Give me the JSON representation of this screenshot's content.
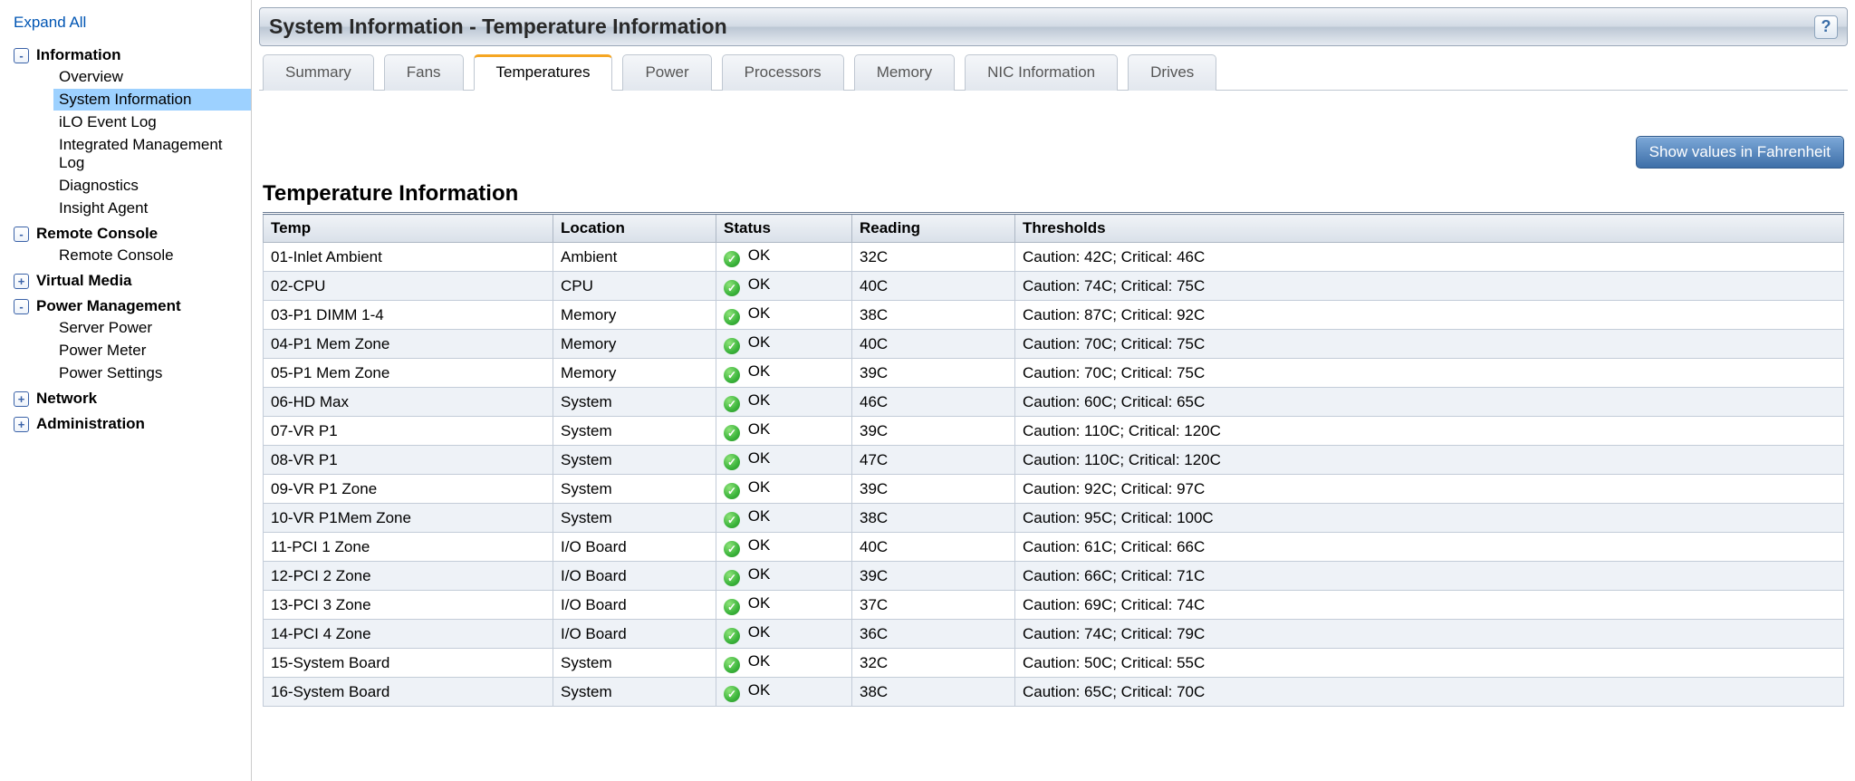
{
  "sidebar": {
    "expand_all": "Expand All",
    "groups": [
      {
        "label": "Information",
        "state": "-",
        "children": [
          {
            "label": "Overview",
            "active": false
          },
          {
            "label": "System Information",
            "active": true
          },
          {
            "label": "iLO Event Log",
            "active": false
          },
          {
            "label": "Integrated Management Log",
            "active": false
          },
          {
            "label": "Diagnostics",
            "active": false
          },
          {
            "label": "Insight Agent",
            "active": false
          }
        ]
      },
      {
        "label": "Remote Console",
        "state": "-",
        "children": [
          {
            "label": "Remote Console",
            "active": false
          }
        ]
      },
      {
        "label": "Virtual Media",
        "state": "+",
        "children": []
      },
      {
        "label": "Power Management",
        "state": "-",
        "children": [
          {
            "label": "Server Power",
            "active": false
          },
          {
            "label": "Power Meter",
            "active": false
          },
          {
            "label": "Power Settings",
            "active": false
          }
        ]
      },
      {
        "label": "Network",
        "state": "+",
        "children": []
      },
      {
        "label": "Administration",
        "state": "+",
        "children": []
      }
    ]
  },
  "header": {
    "title": "System Information - Temperature Information"
  },
  "tabs": [
    {
      "label": "Summary",
      "active": false
    },
    {
      "label": "Fans",
      "active": false
    },
    {
      "label": "Temperatures",
      "active": true
    },
    {
      "label": "Power",
      "active": false
    },
    {
      "label": "Processors",
      "active": false
    },
    {
      "label": "Memory",
      "active": false
    },
    {
      "label": "NIC Information",
      "active": false
    },
    {
      "label": "Drives",
      "active": false
    }
  ],
  "actions": {
    "unit_button": "Show values in Fahrenheit"
  },
  "section": {
    "title": "Temperature Information",
    "columns": [
      "Temp",
      "Location",
      "Status",
      "Reading",
      "Thresholds"
    ],
    "status_ok_label": "OK",
    "rows": [
      {
        "temp": "01-Inlet Ambient",
        "location": "Ambient",
        "status": "OK",
        "reading": "32C",
        "thresholds": "Caution: 42C; Critical: 46C"
      },
      {
        "temp": "02-CPU",
        "location": "CPU",
        "status": "OK",
        "reading": "40C",
        "thresholds": "Caution: 74C; Critical: 75C"
      },
      {
        "temp": "03-P1 DIMM 1-4",
        "location": "Memory",
        "status": "OK",
        "reading": "38C",
        "thresholds": "Caution: 87C; Critical: 92C"
      },
      {
        "temp": "04-P1 Mem Zone",
        "location": "Memory",
        "status": "OK",
        "reading": "40C",
        "thresholds": "Caution: 70C; Critical: 75C"
      },
      {
        "temp": "05-P1 Mem Zone",
        "location": "Memory",
        "status": "OK",
        "reading": "39C",
        "thresholds": "Caution: 70C; Critical: 75C"
      },
      {
        "temp": "06-HD Max",
        "location": "System",
        "status": "OK",
        "reading": "46C",
        "thresholds": "Caution: 60C; Critical: 65C"
      },
      {
        "temp": "07-VR P1",
        "location": "System",
        "status": "OK",
        "reading": "39C",
        "thresholds": "Caution: 110C; Critical: 120C"
      },
      {
        "temp": "08-VR P1",
        "location": "System",
        "status": "OK",
        "reading": "47C",
        "thresholds": "Caution: 110C; Critical: 120C"
      },
      {
        "temp": "09-VR P1 Zone",
        "location": "System",
        "status": "OK",
        "reading": "39C",
        "thresholds": "Caution: 92C; Critical: 97C"
      },
      {
        "temp": "10-VR P1Mem Zone",
        "location": "System",
        "status": "OK",
        "reading": "38C",
        "thresholds": "Caution: 95C; Critical: 100C"
      },
      {
        "temp": "11-PCI 1 Zone",
        "location": "I/O Board",
        "status": "OK",
        "reading": "40C",
        "thresholds": "Caution: 61C; Critical: 66C"
      },
      {
        "temp": "12-PCI 2 Zone",
        "location": "I/O Board",
        "status": "OK",
        "reading": "39C",
        "thresholds": "Caution: 66C; Critical: 71C"
      },
      {
        "temp": "13-PCI 3 Zone",
        "location": "I/O Board",
        "status": "OK",
        "reading": "37C",
        "thresholds": "Caution: 69C; Critical: 74C"
      },
      {
        "temp": "14-PCI 4 Zone",
        "location": "I/O Board",
        "status": "OK",
        "reading": "36C",
        "thresholds": "Caution: 74C; Critical: 79C"
      },
      {
        "temp": "15-System Board",
        "location": "System",
        "status": "OK",
        "reading": "32C",
        "thresholds": "Caution: 50C; Critical: 55C"
      },
      {
        "temp": "16-System Board",
        "location": "System",
        "status": "OK",
        "reading": "38C",
        "thresholds": "Caution: 65C; Critical: 70C"
      }
    ],
    "col_widths": [
      "320px",
      "180px",
      "150px",
      "180px",
      "auto"
    ]
  },
  "colors": {
    "link": "#0055b3",
    "active_nav_bg": "#9dd1ff",
    "tab_active_accent": "#f5a623",
    "button_bg_top": "#7ca8d8",
    "button_bg_bottom": "#3e6fa8",
    "ok_green": "#3bb43b"
  }
}
